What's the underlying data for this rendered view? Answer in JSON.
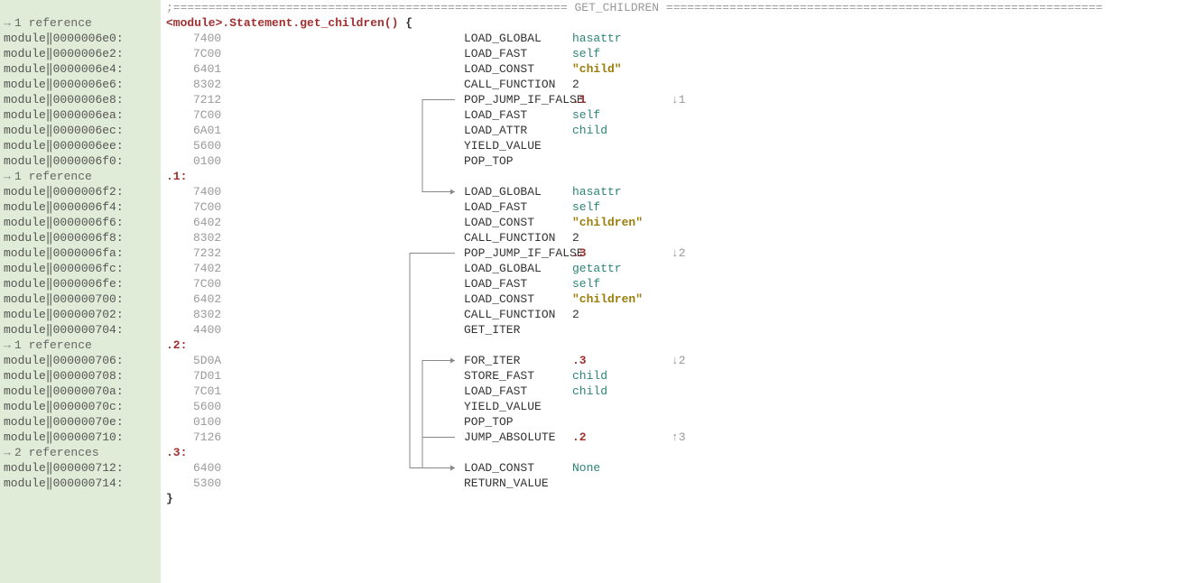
{
  "colors": {
    "gutter_bg": "#e0ecd7",
    "main_bg": "#ffffff",
    "hex": "#999999",
    "opcode": "#333333",
    "keyword": "#2b8576",
    "string": "#9a7d0a",
    "label": "#a03030",
    "comment": "#999999",
    "flow_line": "#888888"
  },
  "layout": {
    "line_height": 17,
    "gutter_width": 178,
    "hex_col": 30,
    "opcode_col": 330,
    "operand_col": 450,
    "hint_col": 560,
    "flow_x_start": 290,
    "flow_x_end": 326
  },
  "header": {
    "separator": ";======================================================== GET_CHILDREN ==============================================================",
    "signature": "<module>.Statement.get_children()",
    "open_brace": " {"
  },
  "footer": {
    "close_brace": "}"
  },
  "gutter_lines": [
    {
      "type": "blank",
      "text": ""
    },
    {
      "type": "ref",
      "text": "1 reference"
    },
    {
      "type": "addr",
      "text": "module‖0000006e0:"
    },
    {
      "type": "addr",
      "text": "module‖0000006e2:"
    },
    {
      "type": "addr",
      "text": "module‖0000006e4:"
    },
    {
      "type": "addr",
      "text": "module‖0000006e6:"
    },
    {
      "type": "addr",
      "text": "module‖0000006e8:"
    },
    {
      "type": "addr",
      "text": "module‖0000006ea:"
    },
    {
      "type": "addr",
      "text": "module‖0000006ec:"
    },
    {
      "type": "addr",
      "text": "module‖0000006ee:"
    },
    {
      "type": "addr",
      "text": "module‖0000006f0:"
    },
    {
      "type": "ref",
      "text": "1 reference"
    },
    {
      "type": "addr",
      "text": "module‖0000006f2:"
    },
    {
      "type": "addr",
      "text": "module‖0000006f4:"
    },
    {
      "type": "addr",
      "text": "module‖0000006f6:"
    },
    {
      "type": "addr",
      "text": "module‖0000006f8:"
    },
    {
      "type": "addr",
      "text": "module‖0000006fa:"
    },
    {
      "type": "addr",
      "text": "module‖0000006fc:"
    },
    {
      "type": "addr",
      "text": "module‖0000006fe:"
    },
    {
      "type": "addr",
      "text": "module‖000000700:"
    },
    {
      "type": "addr",
      "text": "module‖000000702:"
    },
    {
      "type": "addr",
      "text": "module‖000000704:"
    },
    {
      "type": "ref",
      "text": "1 reference"
    },
    {
      "type": "addr",
      "text": "module‖000000706:"
    },
    {
      "type": "addr",
      "text": "module‖000000708:"
    },
    {
      "type": "addr",
      "text": "module‖00000070a:"
    },
    {
      "type": "addr",
      "text": "module‖00000070c:"
    },
    {
      "type": "addr",
      "text": "module‖00000070e:"
    },
    {
      "type": "addr",
      "text": "module‖000000710:"
    },
    {
      "type": "ref",
      "text": "2 references"
    },
    {
      "type": "addr",
      "text": "module‖000000712:"
    },
    {
      "type": "addr",
      "text": "module‖000000714:"
    },
    {
      "type": "blank",
      "text": ""
    }
  ],
  "code_lines": [
    {
      "kind": "header"
    },
    {
      "kind": "sig"
    },
    {
      "kind": "instr",
      "hex": "7400",
      "op": "LOAD_GLOBAL",
      "arg": "hasattr",
      "cls": "operand-kw"
    },
    {
      "kind": "instr",
      "hex": "7C00",
      "op": "LOAD_FAST",
      "arg": "self",
      "cls": "operand-kw"
    },
    {
      "kind": "instr",
      "hex": "6401",
      "op": "LOAD_CONST",
      "arg": "\"child\"",
      "cls": "operand-str"
    },
    {
      "kind": "instr",
      "hex": "8302",
      "op": "CALL_FUNCTION",
      "arg": "2",
      "cls": "operand-num"
    },
    {
      "kind": "instr",
      "hex": "7212",
      "op": "POP_JUMP_IF_FALSE",
      "arg": ".1",
      "cls": "operand-lbl",
      "hint": "↓1"
    },
    {
      "kind": "instr",
      "hex": "7C00",
      "op": "LOAD_FAST",
      "arg": "self",
      "cls": "operand-kw"
    },
    {
      "kind": "instr",
      "hex": "6A01",
      "op": "LOAD_ATTR",
      "arg": "child",
      "cls": "operand-kw"
    },
    {
      "kind": "instr",
      "hex": "5600",
      "op": "YIELD_VALUE",
      "arg": "",
      "cls": ""
    },
    {
      "kind": "instr",
      "hex": "0100",
      "op": "POP_TOP",
      "arg": "",
      "cls": ""
    },
    {
      "kind": "label",
      "text": ".1:"
    },
    {
      "kind": "instr",
      "hex": "7400",
      "op": "LOAD_GLOBAL",
      "arg": "hasattr",
      "cls": "operand-kw"
    },
    {
      "kind": "instr",
      "hex": "7C00",
      "op": "LOAD_FAST",
      "arg": "self",
      "cls": "operand-kw"
    },
    {
      "kind": "instr",
      "hex": "6402",
      "op": "LOAD_CONST",
      "arg": "\"children\"",
      "cls": "operand-str"
    },
    {
      "kind": "instr",
      "hex": "8302",
      "op": "CALL_FUNCTION",
      "arg": "2",
      "cls": "operand-num"
    },
    {
      "kind": "instr",
      "hex": "7232",
      "op": "POP_JUMP_IF_FALSE",
      "arg": ".3",
      "cls": "operand-lbl",
      "hint": "↓2"
    },
    {
      "kind": "instr",
      "hex": "7402",
      "op": "LOAD_GLOBAL",
      "arg": "getattr",
      "cls": "operand-kw"
    },
    {
      "kind": "instr",
      "hex": "7C00",
      "op": "LOAD_FAST",
      "arg": "self",
      "cls": "operand-kw"
    },
    {
      "kind": "instr",
      "hex": "6402",
      "op": "LOAD_CONST",
      "arg": "\"children\"",
      "cls": "operand-str"
    },
    {
      "kind": "instr",
      "hex": "8302",
      "op": "CALL_FUNCTION",
      "arg": "2",
      "cls": "operand-num"
    },
    {
      "kind": "instr",
      "hex": "4400",
      "op": "GET_ITER",
      "arg": "",
      "cls": ""
    },
    {
      "kind": "label",
      "text": ".2:"
    },
    {
      "kind": "instr",
      "hex": "5D0A",
      "op": "FOR_ITER",
      "arg": ".3",
      "cls": "operand-lbl",
      "hint": "↓2"
    },
    {
      "kind": "instr",
      "hex": "7D01",
      "op": "STORE_FAST",
      "arg": "child",
      "cls": "operand-kw"
    },
    {
      "kind": "instr",
      "hex": "7C01",
      "op": "LOAD_FAST",
      "arg": "child",
      "cls": "operand-kw"
    },
    {
      "kind": "instr",
      "hex": "5600",
      "op": "YIELD_VALUE",
      "arg": "",
      "cls": ""
    },
    {
      "kind": "instr",
      "hex": "0100",
      "op": "POP_TOP",
      "arg": "",
      "cls": ""
    },
    {
      "kind": "instr",
      "hex": "7126",
      "op": "JUMP_ABSOLUTE",
      "arg": ".2",
      "cls": "operand-lbl",
      "hint": "↑3"
    },
    {
      "kind": "label",
      "text": ".3:"
    },
    {
      "kind": "instr",
      "hex": "6400",
      "op": "LOAD_CONST",
      "arg": "None",
      "cls": "operand-none"
    },
    {
      "kind": "instr",
      "hex": "5300",
      "op": "RETURN_VALUE",
      "arg": "",
      "cls": ""
    },
    {
      "kind": "close"
    }
  ],
  "flow_arrows": [
    {
      "from_line": 6,
      "to_line": 12,
      "depth": 0,
      "label": "jump-1"
    },
    {
      "from_line": 16,
      "to_line": 30,
      "depth": 1,
      "label": "jump-2"
    },
    {
      "from_line": 23,
      "to_line": 30,
      "depth": 0,
      "label": "jump-3"
    },
    {
      "from_line": 28,
      "to_line": 23,
      "depth": 0,
      "label": "jump-4"
    }
  ]
}
